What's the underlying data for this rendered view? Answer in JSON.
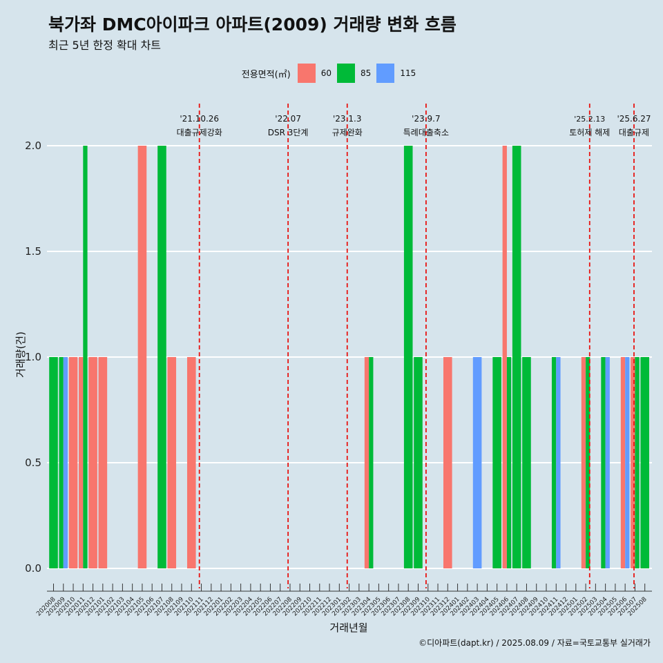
{
  "title": "북가좌 DMC아이파크 아파트(2009) 거래량 변화 흐름",
  "subtitle": "최근 5년 한정 확대 차트",
  "caption": "©디아파트(dapt.kr) / 2025.08.09 / 자료=국토교통부 실거래가",
  "legend": {
    "title": "전용면적(㎡)",
    "items": [
      {
        "label": "60",
        "color": "#f8766d"
      },
      {
        "label": "85",
        "color": "#00ba38"
      },
      {
        "label": "115",
        "color": "#619cff"
      }
    ]
  },
  "chart_data": {
    "type": "bar",
    "xlabel": "거래년월",
    "ylabel": "거래량(건)",
    "ylim": [
      0,
      2
    ],
    "yticks": [
      "0.0",
      "0.5",
      "1.0",
      "1.5",
      "2.0"
    ],
    "grid": true,
    "legend_position": "top",
    "categories": [
      "202008",
      "202009",
      "202010",
      "202011",
      "202012",
      "202101",
      "202102",
      "202103",
      "202104",
      "202105",
      "202106",
      "202107",
      "202108",
      "202109",
      "202110",
      "202111",
      "202112",
      "202201",
      "202202",
      "202203",
      "202204",
      "202205",
      "202206",
      "202207",
      "202208",
      "202209",
      "202210",
      "202211",
      "202212",
      "202301",
      "202302",
      "202303",
      "202304",
      "202305",
      "202306",
      "202307",
      "202308",
      "202309",
      "202310",
      "202311",
      "202312",
      "202401",
      "202402",
      "202403",
      "202404",
      "202405",
      "202406",
      "202407",
      "202408",
      "202409",
      "202410",
      "202411",
      "202412",
      "202501",
      "202502",
      "202503",
      "202504",
      "202505",
      "202506",
      "202507",
      "202508"
    ],
    "series": [
      {
        "name": "60",
        "color": "#f8766d",
        "values": [
          0,
          0,
          1,
          1,
          1,
          1,
          0,
          0,
          0,
          2,
          0,
          0,
          1,
          0,
          1,
          0,
          0,
          0,
          0,
          0,
          0,
          0,
          0,
          0,
          0,
          0,
          0,
          0,
          0,
          0,
          0,
          0,
          1,
          0,
          0,
          0,
          0,
          0,
          0,
          0,
          1,
          0,
          0,
          0,
          0,
          0,
          2,
          0,
          0,
          0,
          0,
          0,
          0,
          0,
          1,
          0,
          0,
          0,
          1,
          1,
          0
        ]
      },
      {
        "name": "85",
        "color": "#00ba38",
        "values": [
          1,
          1,
          0,
          2,
          0,
          0,
          0,
          0,
          0,
          0,
          0,
          2,
          0,
          0,
          0,
          0,
          0,
          0,
          0,
          0,
          0,
          0,
          0,
          0,
          0,
          0,
          0,
          0,
          0,
          0,
          0,
          0,
          1,
          0,
          0,
          0,
          2,
          1,
          0,
          0,
          0,
          0,
          0,
          0,
          0,
          1,
          1,
          2,
          1,
          0,
          0,
          1,
          0,
          0,
          1,
          0,
          1,
          0,
          0,
          1,
          1
        ]
      },
      {
        "name": "115",
        "color": "#619cff",
        "values": [
          0,
          1,
          0,
          0,
          0,
          0,
          0,
          0,
          0,
          0,
          0,
          0,
          0,
          0,
          0,
          0,
          0,
          0,
          0,
          0,
          0,
          0,
          0,
          0,
          0,
          0,
          0,
          0,
          0,
          0,
          0,
          0,
          0,
          0,
          0,
          0,
          0,
          0,
          0,
          0,
          0,
          0,
          0,
          1,
          0,
          0,
          0,
          0,
          0,
          0,
          0,
          1,
          0,
          0,
          0,
          0,
          1,
          0,
          1,
          0,
          0
        ]
      }
    ],
    "annotations": [
      {
        "date": "'21.10.26",
        "label": "대출규제강화",
        "x": 14.8,
        "tier": 1
      },
      {
        "date": "'22.07",
        "label": "DSR 3단계",
        "x": 23.8,
        "tier": 2
      },
      {
        "date": "'23.1.3",
        "label": "규제완화",
        "x": 29.8,
        "tier": 2
      },
      {
        "date": "'23.9.7",
        "label": "특례대출축소",
        "x": 37.8,
        "tier": 2
      },
      {
        "date": "'25.2.13",
        "label": "토허제 해제",
        "x": 54.4,
        "tier": 2
      },
      {
        "date": "'25.6.27",
        "label": "대출규제",
        "x": 58.9,
        "tier": 2
      }
    ]
  }
}
